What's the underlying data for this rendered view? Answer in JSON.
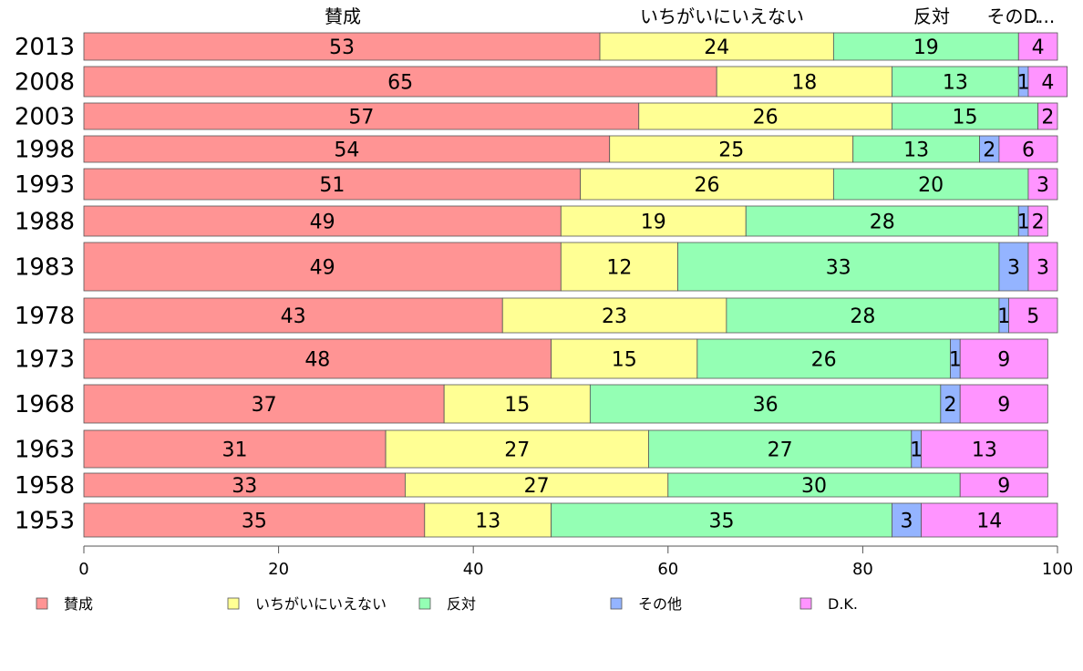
{
  "chart_data": {
    "type": "bar",
    "orientation": "horizontal",
    "stacked": true,
    "categories": [
      "2013",
      "2008",
      "2003",
      "1998",
      "1993",
      "1988",
      "1983",
      "1978",
      "1973",
      "1968",
      "1963",
      "1958",
      "1953"
    ],
    "series": [
      {
        "name": "賛成",
        "color": "#ff9494",
        "values": [
          53,
          65,
          57,
          54,
          51,
          49,
          49,
          43,
          48,
          37,
          31,
          33,
          35
        ]
      },
      {
        "name": "いちがいにいえない",
        "color": "#ffff94",
        "values": [
          24,
          18,
          26,
          25,
          26,
          19,
          12,
          23,
          15,
          15,
          27,
          27,
          13
        ]
      },
      {
        "name": "反対",
        "color": "#94ffb4",
        "values": [
          19,
          13,
          15,
          13,
          20,
          28,
          33,
          28,
          26,
          36,
          27,
          30,
          35
        ]
      },
      {
        "name": "その他",
        "color": "#94b4ff",
        "values": [
          0,
          1,
          0,
          2,
          0,
          1,
          3,
          1,
          1,
          2,
          1,
          0,
          3
        ]
      },
      {
        "name": "D.K.",
        "color": "#ff94ff",
        "values": [
          4,
          4,
          2,
          6,
          3,
          2,
          3,
          5,
          9,
          9,
          13,
          9,
          14
        ]
      }
    ],
    "column_headers": [
      "賛成",
      "いちがいにいえない",
      "反対",
      "その...",
      "D..."
    ],
    "xlim": [
      0,
      100
    ],
    "xticks": [
      "0",
      "20",
      "40",
      "60",
      "80",
      "100"
    ],
    "legend_placement": "bottom",
    "legend": [
      "賛成",
      "いちがいにいえない",
      "反対",
      "その他",
      "D.K."
    ],
    "grid": false
  }
}
